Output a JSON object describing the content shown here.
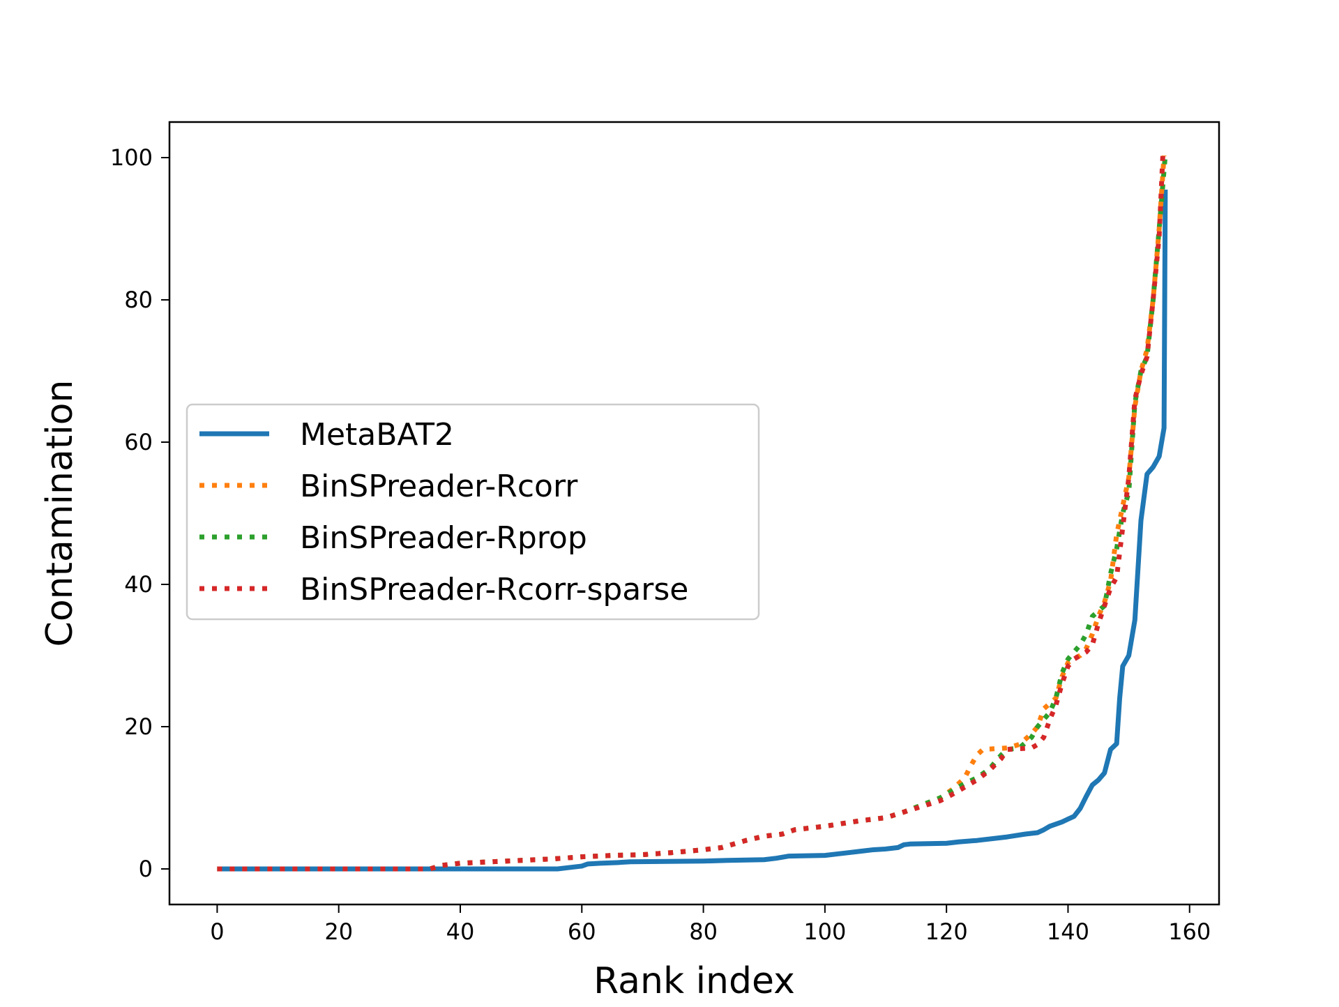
{
  "chart_data": {
    "type": "line",
    "xlabel": "Rank index",
    "ylabel": "Contamination",
    "xlim": [
      -7.85,
      164.85
    ],
    "ylim": [
      -5,
      105
    ],
    "xticks": [
      0,
      20,
      40,
      60,
      80,
      100,
      120,
      140,
      160
    ],
    "yticks": [
      0,
      20,
      40,
      60,
      80,
      100
    ],
    "grid": false,
    "legend_position": "center-left",
    "series": [
      {
        "name": "MetaBAT2",
        "color": "#1f77b4",
        "style": "solid",
        "points": [
          [
            0,
            0
          ],
          [
            56,
            0
          ],
          [
            58,
            0.2
          ],
          [
            60,
            0.4
          ],
          [
            61,
            0.7
          ],
          [
            63,
            0.8
          ],
          [
            66,
            0.9
          ],
          [
            68,
            1.0
          ],
          [
            80,
            1.1
          ],
          [
            84,
            1.2
          ],
          [
            90,
            1.3
          ],
          [
            92,
            1.5
          ],
          [
            94,
            1.8
          ],
          [
            100,
            1.9
          ],
          [
            102,
            2.1
          ],
          [
            104,
            2.3
          ],
          [
            106,
            2.5
          ],
          [
            108,
            2.7
          ],
          [
            110,
            2.8
          ],
          [
            112,
            3.0
          ],
          [
            113,
            3.4
          ],
          [
            114,
            3.5
          ],
          [
            120,
            3.6
          ],
          [
            122,
            3.8
          ],
          [
            125,
            4.0
          ],
          [
            130,
            4.5
          ],
          [
            133,
            4.9
          ],
          [
            135,
            5.1
          ],
          [
            136,
            5.5
          ],
          [
            137,
            6.0
          ],
          [
            139,
            6.6
          ],
          [
            140,
            7.0
          ],
          [
            141,
            7.4
          ],
          [
            142,
            8.5
          ],
          [
            143,
            10.2
          ],
          [
            144,
            11.8
          ],
          [
            145,
            12.5
          ],
          [
            146,
            13.5
          ],
          [
            147,
            16.8
          ],
          [
            148,
            17.6
          ],
          [
            148.5,
            24.0
          ],
          [
            149,
            28.5
          ],
          [
            150,
            30.0
          ],
          [
            151,
            35.0
          ],
          [
            152,
            49.0
          ],
          [
            153,
            55.5
          ],
          [
            154,
            56.5
          ],
          [
            155,
            58.0
          ],
          [
            155.8,
            62.0
          ],
          [
            156,
            95.5
          ]
        ]
      },
      {
        "name": "BinSPreader-Rcorr",
        "color": "#ff7f0e",
        "style": "dotted",
        "points": [
          [
            0,
            0
          ],
          [
            35,
            0
          ],
          [
            37,
            0.5
          ],
          [
            40,
            0.8
          ],
          [
            45,
            1.0
          ],
          [
            50,
            1.2
          ],
          [
            55,
            1.4
          ],
          [
            60,
            1.7
          ],
          [
            65,
            1.9
          ],
          [
            70,
            2.0
          ],
          [
            75,
            2.3
          ],
          [
            80,
            2.7
          ],
          [
            83,
            3.0
          ],
          [
            85,
            3.5
          ],
          [
            87,
            4.0
          ],
          [
            90,
            4.6
          ],
          [
            93,
            4.9
          ],
          [
            95,
            5.5
          ],
          [
            100,
            6.0
          ],
          [
            103,
            6.4
          ],
          [
            106,
            6.8
          ],
          [
            110,
            7.2
          ],
          [
            113,
            8.0
          ],
          [
            116,
            9.0
          ],
          [
            119,
            10.0
          ],
          [
            121,
            11.2
          ],
          [
            123,
            12.8
          ],
          [
            124,
            14.5
          ],
          [
            125,
            16.0
          ],
          [
            126,
            16.8
          ],
          [
            130,
            17.0
          ],
          [
            132,
            17.5
          ],
          [
            134,
            19.0
          ],
          [
            135,
            20.0
          ],
          [
            136,
            22.5
          ],
          [
            138,
            24.0
          ],
          [
            139,
            27.0
          ],
          [
            140,
            29.0
          ],
          [
            141,
            29.6
          ],
          [
            142,
            30.0
          ],
          [
            143,
            31.0
          ],
          [
            144,
            33.0
          ],
          [
            145,
            35.5
          ],
          [
            146,
            37.5
          ],
          [
            147,
            40.5
          ],
          [
            148,
            47.0
          ],
          [
            149,
            51.0
          ],
          [
            150,
            55.0
          ],
          [
            151,
            65.0
          ],
          [
            152,
            70.0
          ],
          [
            153,
            73.0
          ],
          [
            154,
            80.0
          ],
          [
            155,
            90.0
          ],
          [
            155.8,
            100.3
          ]
        ]
      },
      {
        "name": "BinSPreader-Rprop",
        "color": "#2ca02c",
        "style": "dotted",
        "points": [
          [
            0,
            0
          ],
          [
            35,
            0
          ],
          [
            37,
            0.5
          ],
          [
            40,
            0.8
          ],
          [
            45,
            1.0
          ],
          [
            50,
            1.2
          ],
          [
            55,
            1.4
          ],
          [
            60,
            1.7
          ],
          [
            65,
            1.9
          ],
          [
            70,
            2.0
          ],
          [
            75,
            2.3
          ],
          [
            80,
            2.7
          ],
          [
            83,
            3.0
          ],
          [
            85,
            3.5
          ],
          [
            87,
            4.0
          ],
          [
            90,
            4.6
          ],
          [
            93,
            4.9
          ],
          [
            95,
            5.5
          ],
          [
            100,
            6.0
          ],
          [
            103,
            6.4
          ],
          [
            106,
            6.8
          ],
          [
            110,
            7.2
          ],
          [
            113,
            8.0
          ],
          [
            116,
            9.0
          ],
          [
            119,
            10.0
          ],
          [
            121,
            11.0
          ],
          [
            123,
            12.0
          ],
          [
            125,
            12.8
          ],
          [
            127,
            14.0
          ],
          [
            129,
            16.0
          ],
          [
            130,
            16.8
          ],
          [
            132,
            17.0
          ],
          [
            134,
            18.5
          ],
          [
            135,
            20.0
          ],
          [
            137,
            22.0
          ],
          [
            138,
            24.0
          ],
          [
            139,
            27.5
          ],
          [
            140,
            29.5
          ],
          [
            141,
            30.5
          ],
          [
            142,
            31.5
          ],
          [
            143,
            33.0
          ],
          [
            144,
            35.5
          ],
          [
            146,
            37.0
          ],
          [
            147,
            41.5
          ],
          [
            148,
            45.0
          ],
          [
            149,
            50.0
          ],
          [
            150,
            53.0
          ],
          [
            151,
            65.5
          ],
          [
            152,
            70.0
          ],
          [
            153,
            72.0
          ],
          [
            154,
            80.0
          ],
          [
            155,
            90.0
          ],
          [
            156,
            100.3
          ]
        ]
      },
      {
        "name": "BinSPreader-Rcorr-sparse",
        "color": "#d62728",
        "style": "dotted",
        "points": [
          [
            0,
            0
          ],
          [
            35,
            0
          ],
          [
            37,
            0.5
          ],
          [
            40,
            0.8
          ],
          [
            45,
            1.0
          ],
          [
            50,
            1.2
          ],
          [
            55,
            1.4
          ],
          [
            60,
            1.7
          ],
          [
            65,
            1.9
          ],
          [
            70,
            2.0
          ],
          [
            75,
            2.3
          ],
          [
            80,
            2.7
          ],
          [
            83,
            3.0
          ],
          [
            85,
            3.5
          ],
          [
            87,
            4.0
          ],
          [
            90,
            4.6
          ],
          [
            93,
            4.9
          ],
          [
            95,
            5.5
          ],
          [
            100,
            6.0
          ],
          [
            103,
            6.4
          ],
          [
            106,
            6.8
          ],
          [
            110,
            7.2
          ],
          [
            113,
            8.0
          ],
          [
            116,
            8.8
          ],
          [
            119,
            9.6
          ],
          [
            121,
            10.5
          ],
          [
            123,
            11.5
          ],
          [
            125,
            12.5
          ],
          [
            127,
            13.8
          ],
          [
            129,
            15.5
          ],
          [
            130,
            16.8
          ],
          [
            134,
            17.0
          ],
          [
            135,
            17.5
          ],
          [
            136,
            18.5
          ],
          [
            137,
            21.0
          ],
          [
            138,
            23.0
          ],
          [
            139,
            26.0
          ],
          [
            140,
            28.5
          ],
          [
            141,
            29.5
          ],
          [
            142,
            30.0
          ],
          [
            143,
            30.5
          ],
          [
            144,
            31.5
          ],
          [
            145,
            34.5
          ],
          [
            146,
            37.0
          ],
          [
            147,
            39.5
          ],
          [
            148,
            41.0
          ],
          [
            149,
            48.0
          ],
          [
            150,
            55.0
          ],
          [
            151,
            66.0
          ],
          [
            152,
            69.5
          ],
          [
            153,
            72.0
          ],
          [
            154,
            80.0
          ],
          [
            155,
            89.0
          ],
          [
            155.6,
            100.3
          ]
        ]
      }
    ]
  }
}
